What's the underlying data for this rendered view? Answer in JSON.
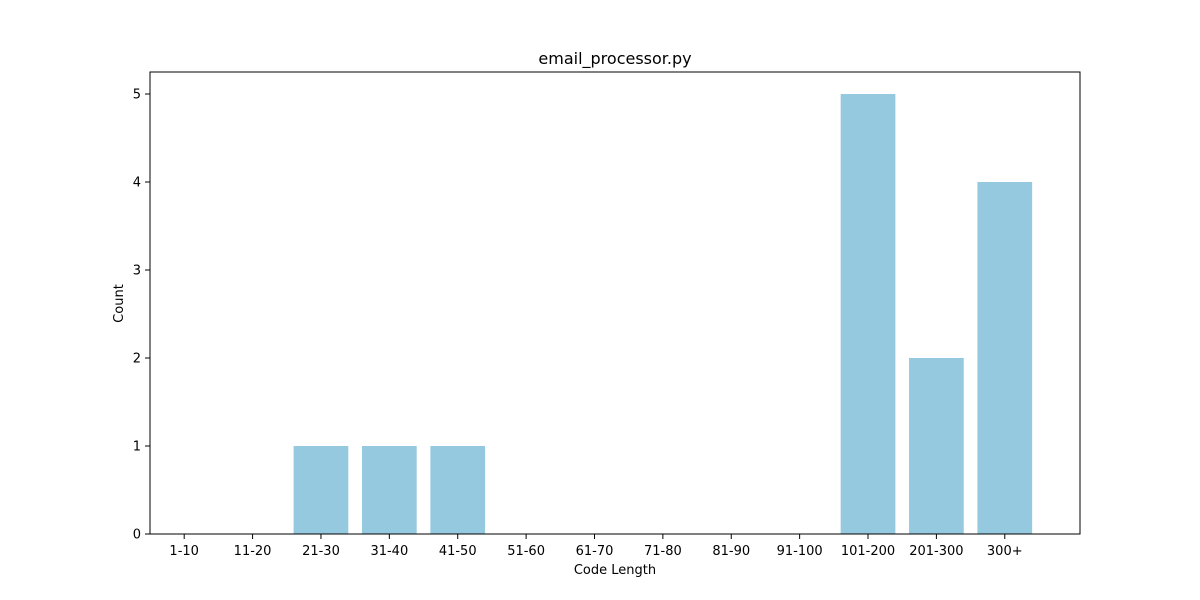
{
  "chart_data": {
    "type": "bar",
    "title": "email_processor.py",
    "xlabel": "Code Length",
    "ylabel": "Count",
    "categories": [
      "1-10",
      "11-20",
      "21-30",
      "31-40",
      "41-50",
      "51-60",
      "61-70",
      "71-80",
      "81-90",
      "91-100",
      "101-200",
      "201-300",
      "300+"
    ],
    "values": [
      0,
      0,
      1,
      1,
      1,
      0,
      0,
      0,
      0,
      0,
      5,
      2,
      4
    ],
    "ylim": [
      0,
      5.25
    ],
    "yticks": [
      0,
      1,
      2,
      3,
      4,
      5
    ],
    "grid": false,
    "legend": "none",
    "bar_color": "#95c9df",
    "axis_color": "#000000"
  }
}
